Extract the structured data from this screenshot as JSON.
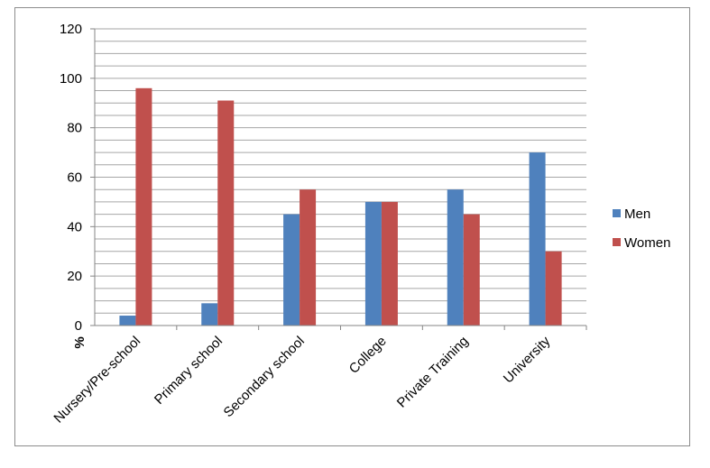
{
  "chart_data": {
    "type": "bar",
    "categories": [
      "Nursery/Pre-school",
      "Primary school",
      "Secondary school",
      "College",
      "Private Training",
      "University"
    ],
    "series": [
      {
        "name": "Men",
        "values": [
          4,
          9,
          45,
          50,
          55,
          70
        ],
        "color": "#4f81bd"
      },
      {
        "name": "Women",
        "values": [
          96,
          91,
          55,
          50,
          45,
          30
        ],
        "color": "#c0504d"
      }
    ],
    "ylim": [
      0,
      120
    ],
    "yticks": [
      "0",
      "20",
      "40",
      "60",
      "80",
      "100",
      "120"
    ],
    "ylabel": "%",
    "grid": true,
    "legend_position": "right"
  }
}
